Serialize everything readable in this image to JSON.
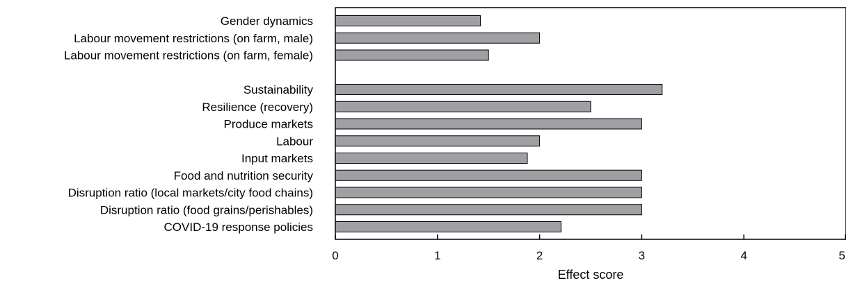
{
  "chart_data": {
    "type": "bar",
    "orientation": "horizontal",
    "categories": [
      "Gender dynamics",
      "Labour movement restrictions (on farm, male)",
      "Labour movement restrictions (on farm, female)",
      "",
      "Sustainability",
      "Resilience (recovery)",
      "Produce markets",
      "Labour",
      "Input markets",
      "Food and nutrition security",
      "Disruption ratio (local markets/city food chains)",
      "Disruption ratio (food grains/perishables)",
      "COVID-19 response policies"
    ],
    "values": [
      1.42,
      2.0,
      1.5,
      null,
      3.2,
      2.5,
      3.0,
      2.0,
      1.88,
      3.0,
      3.0,
      3.0,
      2.21
    ],
    "xlabel": "Effect score",
    "ylabel": "",
    "title": "",
    "xlim": [
      0,
      5
    ],
    "xticks": [
      "0",
      "1",
      "2",
      "3",
      "4",
      "5"
    ],
    "grid": false,
    "bar_color": "#a0a0a4",
    "bar_edge_color": "#000000"
  }
}
